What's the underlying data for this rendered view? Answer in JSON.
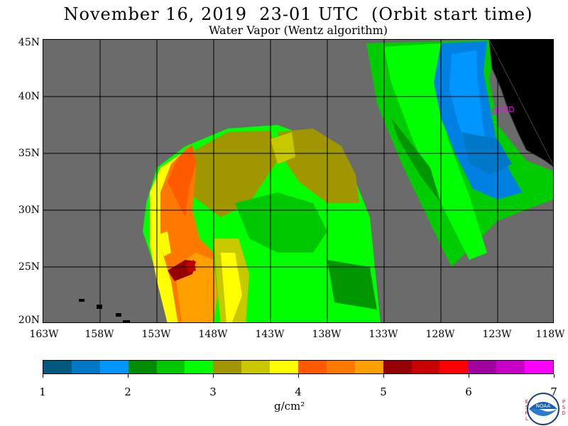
{
  "title": "November 16, 2019  23-01 UTC  (Orbit start time)",
  "subtitle": "Water Vapor (Wentz algorithm)",
  "lat_labels": [
    "45N",
    "40N",
    "35N",
    "30N",
    "25N",
    "20N"
  ],
  "lon_labels": [
    "163W",
    "158W",
    "153W",
    "148W",
    "143W",
    "138W",
    "133W",
    "128W",
    "123W",
    "118W"
  ],
  "station_label": "CZD",
  "colorbar": {
    "colors": [
      "#005a80",
      "#0078c8",
      "#0096ff",
      "#008c00",
      "#00c800",
      "#00ff00",
      "#a09600",
      "#c8c800",
      "#ffff00",
      "#ff5a00",
      "#ff7800",
      "#ffa000",
      "#960000",
      "#c80000",
      "#ff0000",
      "#a000a0",
      "#c800c8",
      "#ff00ff"
    ],
    "tick_labels": [
      "1",
      "2",
      "3",
      "4",
      "5",
      "6",
      "7"
    ],
    "units": "g/cm²"
  },
  "logo": {
    "text": "NOAA",
    "left_letters": [
      "E",
      "S",
      "R",
      "L"
    ],
    "right_letters": [
      "P",
      "S",
      "D"
    ]
  },
  "land_color": "#000000",
  "no_data_color": "#6b6b6b"
}
